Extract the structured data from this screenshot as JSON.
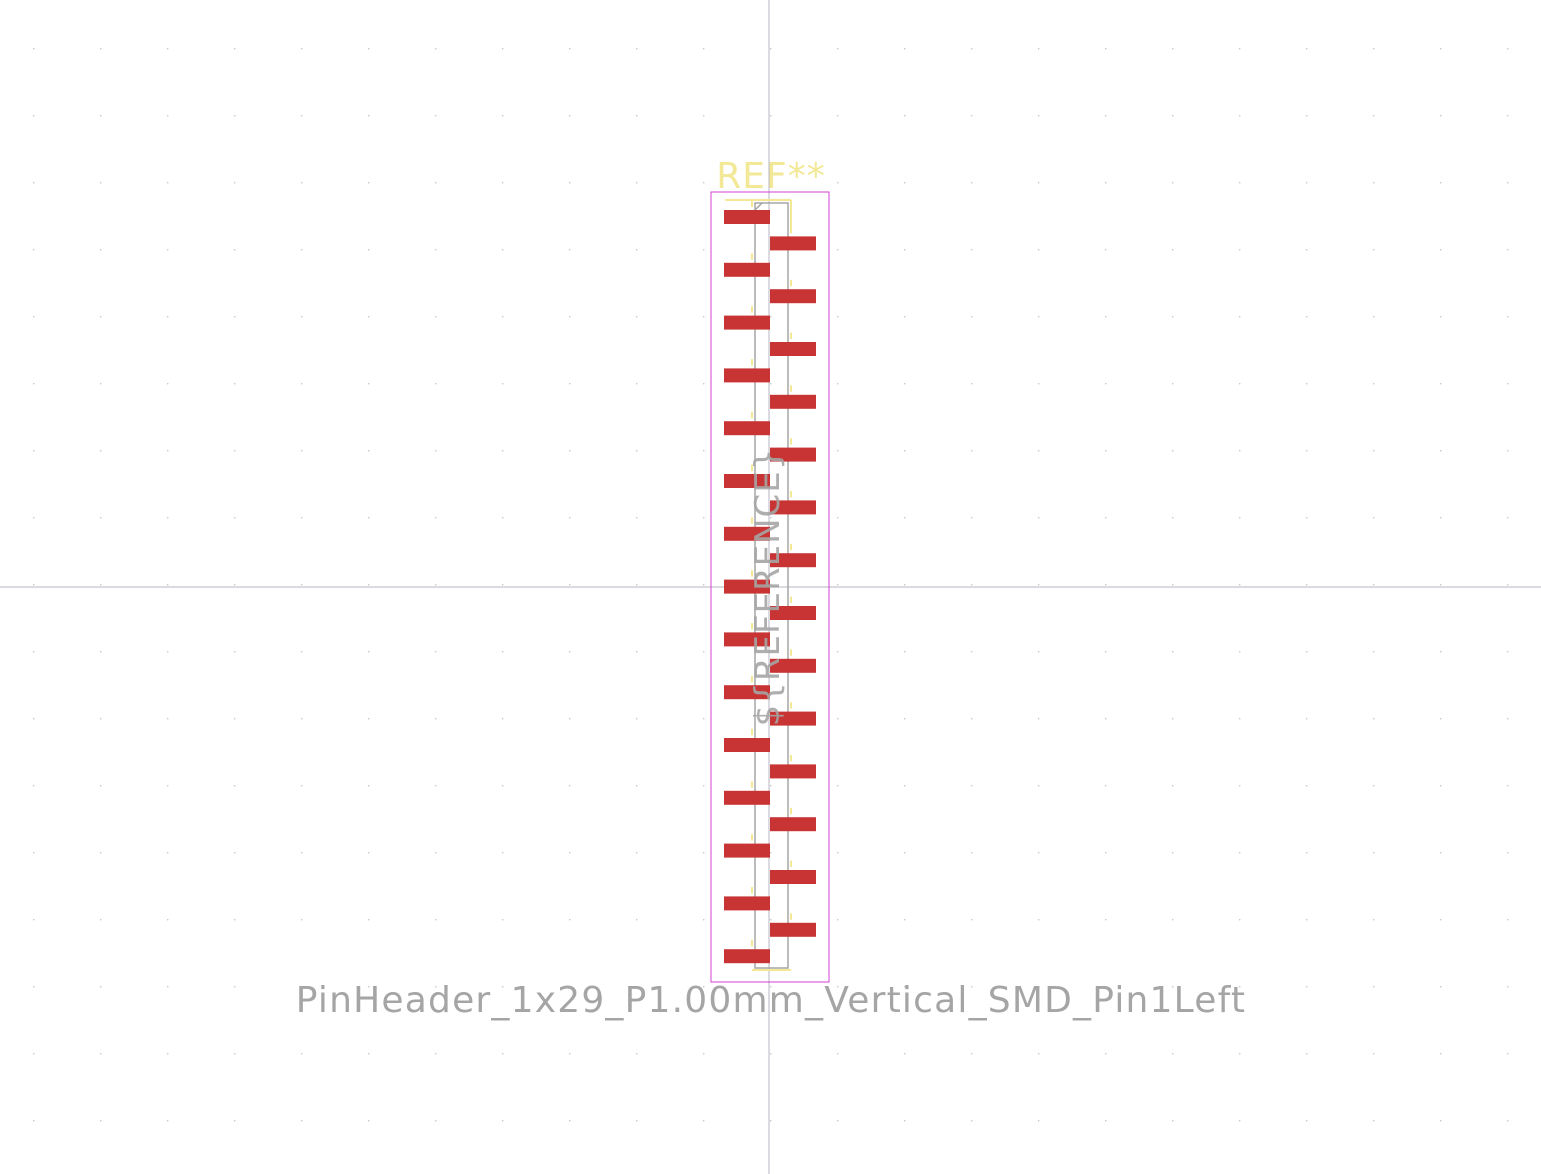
{
  "footprint": {
    "reference": "REF**",
    "value": "PinHeader_1x29_P1.00mm_Vertical_SMD_Pin1Left",
    "user_reference": "${REFERENCE}",
    "pin_count": 29
  },
  "colors": {
    "background": "#ffffff",
    "grid_dot": "#c9c9c9",
    "crosshair": "#b4b4c0",
    "courtyard": "#d43fd4",
    "silkscreen": "#f2e896",
    "fab": "#a5a5a5",
    "pad": "#c83434",
    "value_text": "#a5a5a5",
    "reference_text": "#f2e896",
    "user_text": "#a5a5a5"
  }
}
